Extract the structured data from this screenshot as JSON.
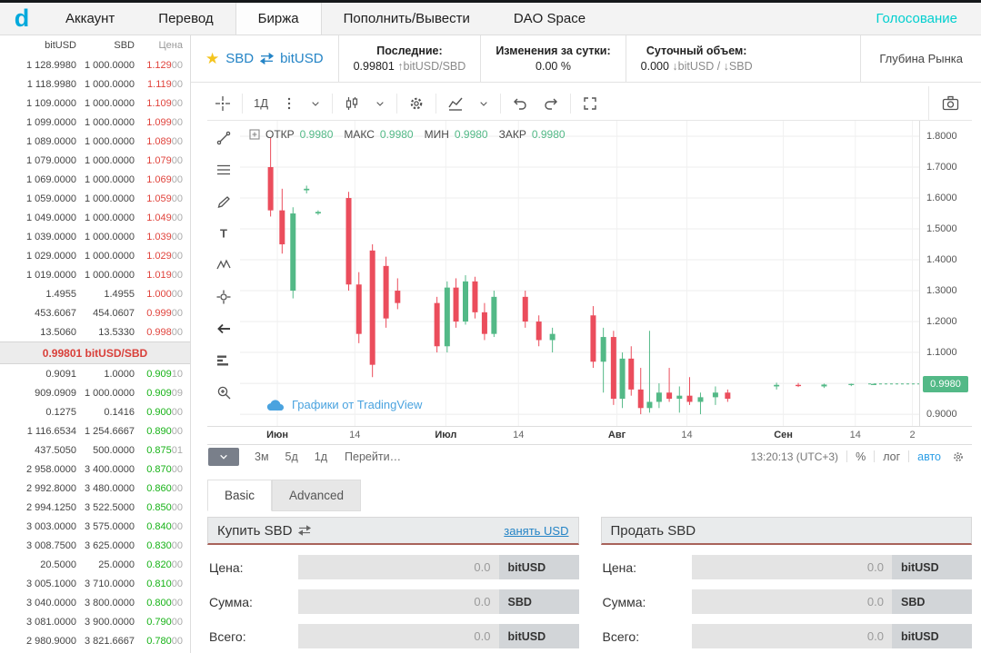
{
  "colors": {
    "accent_cyan": "#00cfcf",
    "ask_red": "#e0433c",
    "bid_green": "#16b216",
    "spread_red": "#d9403a",
    "candle_up": "#53b987",
    "candle_down": "#eb4d5c",
    "badge_green": "#53b987",
    "link_blue": "#2484c6",
    "panel_underline": "#a8625a"
  },
  "nav": {
    "brand": "d",
    "items": [
      {
        "label": "Аккаунт"
      },
      {
        "label": "Перевод"
      },
      {
        "label": "Биржа",
        "active": true
      },
      {
        "label": "Пополнить/Вывести"
      },
      {
        "label": "DAO Space"
      }
    ],
    "vote": "Голосование"
  },
  "orderbook": {
    "headers": [
      "bitUSD",
      "SBD",
      "Цена"
    ],
    "spread": "0.99801 bitUSD/SBD",
    "sells": [
      [
        "1 128.9980",
        "1 000.0000",
        "1.129",
        "00"
      ],
      [
        "1 118.9980",
        "1 000.0000",
        "1.119",
        "00"
      ],
      [
        "1 109.0000",
        "1 000.0000",
        "1.109",
        "00"
      ],
      [
        "1 099.0000",
        "1 000.0000",
        "1.099",
        "00"
      ],
      [
        "1 089.0000",
        "1 000.0000",
        "1.089",
        "00"
      ],
      [
        "1 079.0000",
        "1 000.0000",
        "1.079",
        "00"
      ],
      [
        "1 069.0000",
        "1 000.0000",
        "1.069",
        "00"
      ],
      [
        "1 059.0000",
        "1 000.0000",
        "1.059",
        "00"
      ],
      [
        "1 049.0000",
        "1 000.0000",
        "1.049",
        "00"
      ],
      [
        "1 039.0000",
        "1 000.0000",
        "1.039",
        "00"
      ],
      [
        "1 029.0000",
        "1 000.0000",
        "1.029",
        "00"
      ],
      [
        "1 019.0000",
        "1 000.0000",
        "1.019",
        "00"
      ],
      [
        "1.4955",
        "1.4955",
        "1.000",
        "00"
      ],
      [
        "453.6067",
        "454.0607",
        "0.999",
        "00"
      ],
      [
        "13.5060",
        "13.5330",
        "0.998",
        "00"
      ]
    ],
    "buys": [
      [
        "0.9091",
        "1.0000",
        "0.909",
        "10"
      ],
      [
        "909.0909",
        "1 000.0000",
        "0.909",
        "09"
      ],
      [
        "0.1275",
        "0.1416",
        "0.900",
        "00"
      ],
      [
        "1 116.6534",
        "1 254.6667",
        "0.890",
        "00"
      ],
      [
        "437.5050",
        "500.0000",
        "0.875",
        "01"
      ],
      [
        "2 958.0000",
        "3 400.0000",
        "0.870",
        "00"
      ],
      [
        "2 992.8000",
        "3 480.0000",
        "0.860",
        "00"
      ],
      [
        "2 994.1250",
        "3 522.5000",
        "0.850",
        "00"
      ],
      [
        "3 003.0000",
        "3 575.0000",
        "0.840",
        "00"
      ],
      [
        "3 008.7500",
        "3 625.0000",
        "0.830",
        "00"
      ],
      [
        "20.5000",
        "25.0000",
        "0.820",
        "00"
      ],
      [
        "3 005.1000",
        "3 710.0000",
        "0.810",
        "00"
      ],
      [
        "3 040.0000",
        "3 800.0000",
        "0.800",
        "00"
      ],
      [
        "3 081.0000",
        "3 900.0000",
        "0.790",
        "00"
      ],
      [
        "2 980.9000",
        "3 821.6667",
        "0.780",
        "00"
      ]
    ]
  },
  "market_header": {
    "pair_base": "SBD",
    "pair_quote": "bitUSD",
    "stats": [
      {
        "label": "Последние:",
        "value": "0.99801",
        "suffix": "↑bitUSD/SBD"
      },
      {
        "label": "Изменения за сутки:",
        "value": "0.00 %",
        "suffix": ""
      },
      {
        "label": "Суточный объем:",
        "value": "0.000",
        "suffix": "↓bitUSD / ↓SBD"
      }
    ],
    "depth_button": "Глубина Рынка"
  },
  "chart": {
    "interval": "1Д",
    "legend": [
      {
        "label": "ОТКР",
        "value": "0.9980"
      },
      {
        "label": "МАКС",
        "value": "0.9980"
      },
      {
        "label": "МИН",
        "value": "0.9980"
      },
      {
        "label": "ЗАКР",
        "value": "0.9980"
      }
    ],
    "watermark": "Графики от TradingView",
    "price_badge": "0.9980",
    "current_price": 0.998,
    "y_ticks": [
      {
        "label": "1.8000",
        "p": 1.8
      },
      {
        "label": "1.7000",
        "p": 1.7
      },
      {
        "label": "1.6000",
        "p": 1.6
      },
      {
        "label": "1.5000",
        "p": 1.5
      },
      {
        "label": "1.4000",
        "p": 1.4
      },
      {
        "label": "1.3000",
        "p": 1.3
      },
      {
        "label": "1.2000",
        "p": 1.2
      },
      {
        "label": "1.1000",
        "p": 1.1
      },
      {
        "label": "0.9000",
        "p": 0.9
      }
    ],
    "x_ticks": [
      {
        "label": "Июн",
        "x": 0.055,
        "m": true
      },
      {
        "label": "14",
        "x": 0.169
      },
      {
        "label": "Июл",
        "x": 0.303,
        "m": true
      },
      {
        "label": "14",
        "x": 0.41
      },
      {
        "label": "Авг",
        "x": 0.555,
        "m": true
      },
      {
        "label": "14",
        "x": 0.658
      },
      {
        "label": "Сен",
        "x": 0.8,
        "m": true
      },
      {
        "label": "14",
        "x": 0.906
      },
      {
        "label": "2",
        "x": 0.99
      }
    ],
    "ranges": [
      "3м",
      "5д",
      "1д"
    ],
    "goto": "Перейти…",
    "clock": "13:20:13 (UTC+3)",
    "modes": [
      "%",
      "лог",
      "авто"
    ],
    "candles": [
      [
        0.045,
        1.7,
        1.795,
        1.54,
        1.56
      ],
      [
        0.062,
        1.56,
        1.63,
        1.42,
        1.45
      ],
      [
        0.078,
        1.3,
        1.57,
        1.275,
        1.55
      ],
      [
        0.098,
        1.625,
        1.64,
        1.615,
        1.63
      ],
      [
        0.115,
        1.55,
        1.56,
        1.545,
        1.555
      ],
      [
        0.16,
        1.6,
        1.62,
        1.3,
        1.32
      ],
      [
        0.175,
        1.32,
        1.36,
        1.13,
        1.16
      ],
      [
        0.195,
        1.43,
        1.45,
        1.02,
        1.06
      ],
      [
        0.215,
        1.38,
        1.41,
        1.18,
        1.21
      ],
      [
        0.232,
        1.3,
        1.34,
        1.24,
        1.26
      ],
      [
        0.29,
        1.26,
        1.28,
        1.1,
        1.12
      ],
      [
        0.305,
        1.12,
        1.33,
        1.1,
        1.31
      ],
      [
        0.318,
        1.31,
        1.34,
        1.18,
        1.2
      ],
      [
        0.332,
        1.2,
        1.35,
        1.19,
        1.33
      ],
      [
        0.346,
        1.33,
        1.345,
        1.21,
        1.23
      ],
      [
        0.36,
        1.23,
        1.26,
        1.14,
        1.16
      ],
      [
        0.374,
        1.16,
        1.3,
        1.15,
        1.28
      ],
      [
        0.42,
        1.28,
        1.3,
        1.18,
        1.2
      ],
      [
        0.44,
        1.2,
        1.22,
        1.12,
        1.14
      ],
      [
        0.46,
        1.14,
        1.18,
        1.1,
        1.16
      ],
      [
        0.52,
        1.22,
        1.25,
        1.05,
        1.07
      ],
      [
        0.535,
        1.07,
        1.18,
        0.97,
        1.15
      ],
      [
        0.55,
        1.15,
        1.17,
        0.93,
        0.95
      ],
      [
        0.563,
        0.95,
        1.1,
        0.92,
        1.08
      ],
      [
        0.576,
        1.08,
        1.12,
        0.96,
        0.98
      ],
      [
        0.59,
        0.98,
        1.05,
        0.9,
        0.92
      ],
      [
        0.603,
        0.92,
        1.17,
        0.905,
        0.94
      ],
      [
        0.617,
        0.94,
        1.0,
        0.92,
        0.97
      ],
      [
        0.632,
        0.97,
        1.05,
        0.94,
        0.95
      ],
      [
        0.647,
        0.95,
        0.99,
        0.905,
        0.96
      ],
      [
        0.662,
        0.96,
        1.02,
        0.93,
        0.94
      ],
      [
        0.678,
        0.94,
        0.97,
        0.9,
        0.955
      ],
      [
        0.7,
        0.955,
        0.99,
        0.93,
        0.97
      ],
      [
        0.718,
        0.97,
        0.98,
        0.94,
        0.95
      ],
      [
        0.79,
        0.99,
        1.002,
        0.98,
        0.995
      ],
      [
        0.822,
        0.995,
        1.001,
        0.988,
        0.991
      ],
      [
        0.86,
        0.99,
        0.999,
        0.985,
        0.996
      ],
      [
        0.9,
        0.996,
        0.999,
        0.991,
        0.998
      ],
      [
        0.933,
        0.998,
        0.9985,
        0.997,
        0.998
      ]
    ]
  },
  "panels": {
    "tabs": [
      {
        "label": "Basic",
        "active": true
      },
      {
        "label": "Advanced",
        "active": false
      }
    ],
    "buy": {
      "title": "Купить SBD",
      "borrow": "занять USD",
      "rows": [
        {
          "label": "Цена:",
          "placeholder": "0.0",
          "unit": "bitUSD"
        },
        {
          "label": "Сумма:",
          "placeholder": "0.0",
          "unit": "SBD"
        },
        {
          "label": "Всего:",
          "placeholder": "0.0",
          "unit": "bitUSD"
        }
      ]
    },
    "sell": {
      "title": "Продать SBD",
      "rows": [
        {
          "label": "Цена:",
          "placeholder": "0.0",
          "unit": "bitUSD"
        },
        {
          "label": "Сумма:",
          "placeholder": "0.0",
          "unit": "SBD"
        },
        {
          "label": "Всего:",
          "placeholder": "0.0",
          "unit": "bitUSD"
        }
      ]
    }
  }
}
